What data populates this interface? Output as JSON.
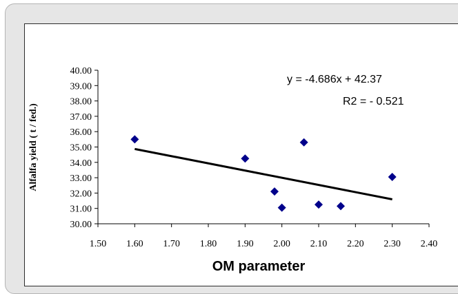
{
  "chart_data": {
    "type": "scatter",
    "title": "",
    "xlabel": "OM parameter",
    "ylabel": "Alfalfa yield ( t / fed.)",
    "xlim": [
      1.5,
      2.4
    ],
    "ylim": [
      30.0,
      40.0
    ],
    "x_ticks": [
      "1.50",
      "1.60",
      "1.70",
      "1.80",
      "1.90",
      "2.00",
      "2.10",
      "2.20",
      "2.30",
      "2.40"
    ],
    "y_ticks": [
      "30.00",
      "31.00",
      "32.00",
      "33.00",
      "34.00",
      "35.00",
      "36.00",
      "37.00",
      "38.00",
      "39.00",
      "40.00"
    ],
    "x_tick_values": [
      1.5,
      1.6,
      1.7,
      1.8,
      1.9,
      2.0,
      2.1,
      2.2,
      2.3,
      2.4
    ],
    "y_tick_values": [
      30,
      31,
      32,
      33,
      34,
      35,
      36,
      37,
      38,
      39,
      40
    ],
    "grid": false,
    "legend": "none",
    "points": [
      {
        "x": 1.6,
        "y": 35.5
      },
      {
        "x": 1.9,
        "y": 34.25
      },
      {
        "x": 1.98,
        "y": 32.1
      },
      {
        "x": 2.0,
        "y": 31.05
      },
      {
        "x": 2.06,
        "y": 35.3
      },
      {
        "x": 2.1,
        "y": 31.25
      },
      {
        "x": 2.16,
        "y": 31.15
      },
      {
        "x": 2.3,
        "y": 33.05
      }
    ],
    "trendline": {
      "slope": -4.686,
      "intercept": 42.37,
      "x_range": [
        1.6,
        2.3
      ]
    },
    "annotations": {
      "equation": "y = -4.686x  + 42.37",
      "r2": "R2 = - 0.521"
    },
    "colors": {
      "marker": "#00008b",
      "trendline": "#000000",
      "axis": "#000000"
    }
  }
}
